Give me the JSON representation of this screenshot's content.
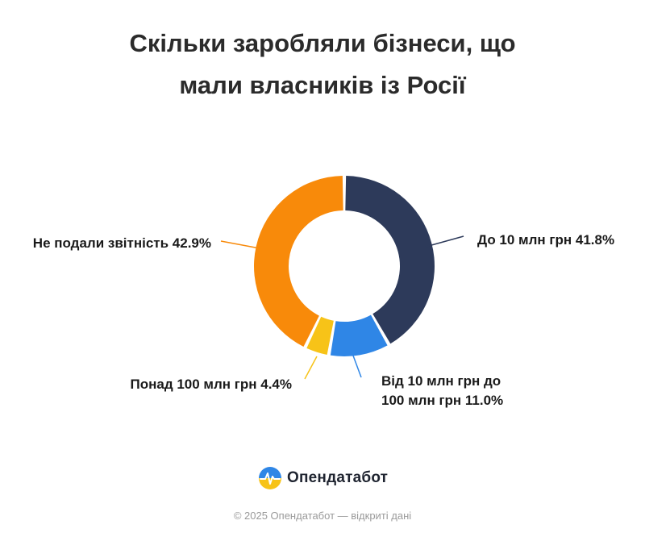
{
  "chart_data": {
    "type": "pie",
    "title_lines": [
      "Скільки заробляли бізнеси, що",
      "мали власників із Росії"
    ],
    "slices": [
      {
        "name": "До 10 млн грн",
        "value": 41.8,
        "value_label": "41.8%",
        "color": "#2d3a5a",
        "label_lines": [
          "До 10 млн грн 41.8%"
        ]
      },
      {
        "name": "Від 10 млн грн до 100 млн грн",
        "value": 11.0,
        "value_label": "11.0%",
        "color": "#2f86e6",
        "label_lines": [
          "Від 10 млн грн до",
          "100 млн грн 11.0%"
        ]
      },
      {
        "name": "Понад 100 млн грн",
        "value": 4.4,
        "value_label": "4.4%",
        "color": "#f7c318",
        "label_lines": [
          "Понад 100 млн грн 4.4%"
        ]
      },
      {
        "name": "Не подали звітність",
        "value": 42.9,
        "value_label": "42.9%",
        "color": "#f88a0a",
        "label_lines": [
          "Не подали звітність 42.9%"
        ]
      }
    ]
  },
  "brand": {
    "name": "Опендатабот"
  },
  "footer": {
    "text": "© 2025 Опендатабот — відкриті дані"
  }
}
